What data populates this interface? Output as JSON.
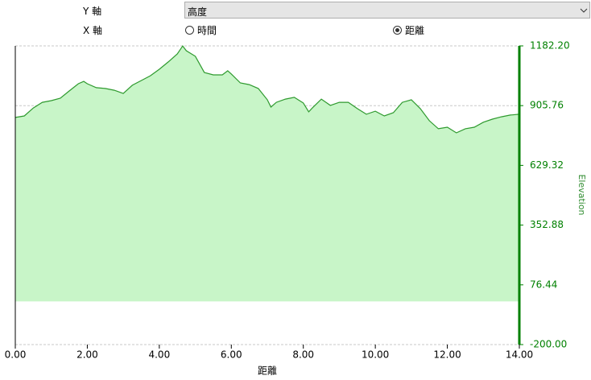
{
  "controls": {
    "y_axis_label": "Y 軸",
    "y_axis_value": "高度",
    "x_axis_label": "X 軸",
    "x_options": [
      {
        "label": "時間",
        "selected": false
      },
      {
        "label": "距離",
        "selected": true
      }
    ]
  },
  "chart_data": {
    "type": "area",
    "x_label": "距離",
    "y_label": "Elevation",
    "x": [
      0,
      0.25,
      0.5,
      0.75,
      1.0,
      1.25,
      1.5,
      1.75,
      1.9,
      2.0,
      2.25,
      2.5,
      2.75,
      3.0,
      3.25,
      3.5,
      3.75,
      4.0,
      4.25,
      4.5,
      4.65,
      4.75,
      5.0,
      5.25,
      5.5,
      5.75,
      5.9,
      6.0,
      6.25,
      6.5,
      6.75,
      7.0,
      7.1,
      7.25,
      7.5,
      7.75,
      8.0,
      8.15,
      8.25,
      8.5,
      8.75,
      9.0,
      9.25,
      9.5,
      9.75,
      10.0,
      10.25,
      10.5,
      10.75,
      11.0,
      11.25,
      11.5,
      11.75,
      12.0,
      12.25,
      12.5,
      12.75,
      13.0,
      13.25,
      13.5,
      13.75,
      14.0
    ],
    "values": [
      851,
      858,
      895,
      921,
      929,
      940,
      974,
      1007,
      1018,
      1007,
      989,
      985,
      977,
      962,
      1000,
      1022,
      1044,
      1074,
      1108,
      1145,
      1182,
      1160,
      1134,
      1059,
      1048,
      1048,
      1067,
      1052,
      1011,
      1003,
      985,
      933,
      899,
      921,
      936,
      944,
      918,
      877,
      895,
      936,
      907,
      921,
      921,
      892,
      866,
      880,
      858,
      873,
      921,
      933,
      892,
      836,
      799,
      806,
      780,
      799,
      806,
      829,
      843,
      854,
      862,
      866
    ],
    "color": "#2e9a2e",
    "fill": "#c8f5c8",
    "axis_color": "#008000",
    "xlim": [
      0,
      14
    ],
    "ylim": [
      -200,
      1182.2
    ],
    "xticks": [
      {
        "value": 0,
        "label": "0.00"
      },
      {
        "value": 2,
        "label": "2.00"
      },
      {
        "value": 4,
        "label": "4.00"
      },
      {
        "value": 6,
        "label": "6.00"
      },
      {
        "value": 8,
        "label": "8.00"
      },
      {
        "value": 10,
        "label": "10.00"
      },
      {
        "value": 12,
        "label": "12.00"
      },
      {
        "value": 14,
        "label": "14.00"
      }
    ],
    "yticks": [
      {
        "value": -200,
        "label": "-200.00"
      },
      76.44,
      352.88,
      629.32,
      905.76,
      {
        "value": 1182.2,
        "label": "1182.20"
      }
    ],
    "grid": true
  }
}
